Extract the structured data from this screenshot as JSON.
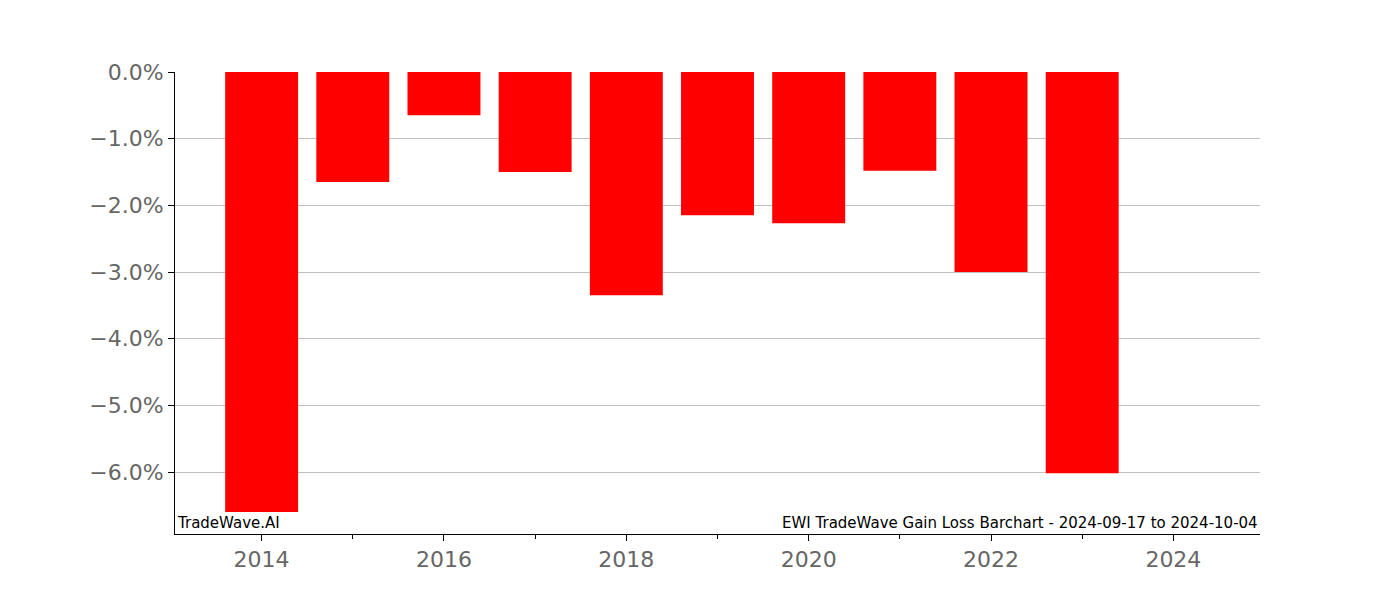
{
  "chart_data": {
    "type": "bar",
    "x": [
      2014,
      2015,
      2016,
      2017,
      2018,
      2019,
      2020,
      2021,
      2022,
      2023
    ],
    "values": [
      -6.6,
      -1.65,
      -0.65,
      -1.5,
      -3.35,
      -2.15,
      -2.27,
      -1.48,
      -3.0,
      -6.02
    ],
    "color": "#ff0000",
    "xlim": [
      2013.05,
      2024.95
    ],
    "xticks": [
      2014,
      2016,
      2018,
      2020,
      2022,
      2024
    ],
    "ylim": [
      -6.93,
      0
    ],
    "yticks": [
      {
        "value": 0,
        "label": "0.0%"
      },
      {
        "value": -1,
        "label": "−1.0%"
      },
      {
        "value": -2,
        "label": "−2.0%"
      },
      {
        "value": -3,
        "label": "−3.0%"
      },
      {
        "value": -4,
        "label": "−4.0%"
      },
      {
        "value": -5,
        "label": "−5.0%"
      },
      {
        "value": -6,
        "label": "−6.0%"
      }
    ],
    "grid": true,
    "annotations": [
      "TradeWave.AI",
      "EWI TradeWave Gain Loss Barchart - 2024-09-17 to 2024-10-04"
    ]
  }
}
